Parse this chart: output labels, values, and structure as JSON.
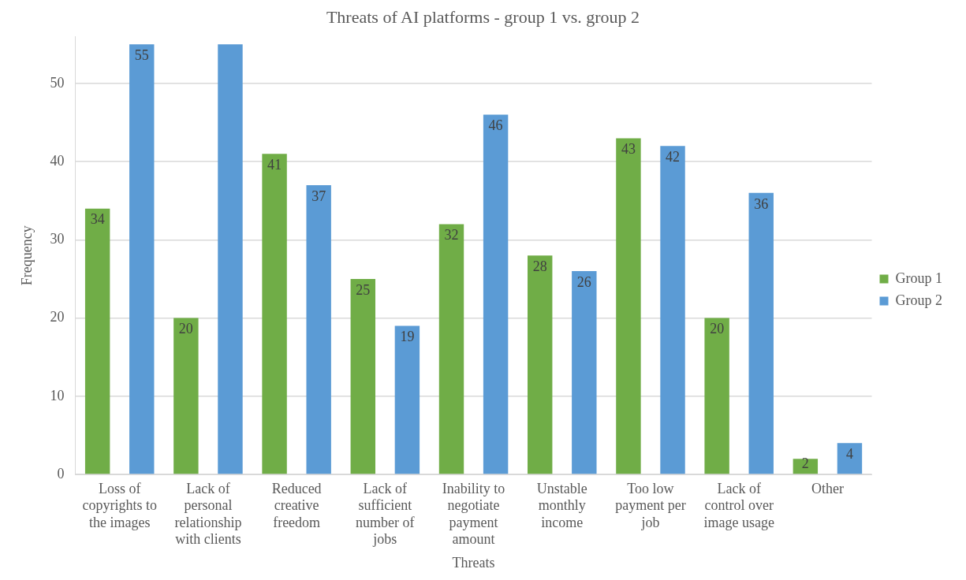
{
  "chart_data": {
    "type": "bar",
    "title": "Threats of AI platforms - group 1 vs. group 2",
    "xlabel": "Threats",
    "ylabel": "Frequency",
    "categories": [
      "Loss of copyrights to the images",
      "Lack of personal relationship with clients",
      "Reduced creative freedom",
      "Lack of sufficient number of jobs",
      "Inability to negotiate payment amount",
      "Unstable monthly income",
      "Too low payment per job",
      "Lack of control over image usage",
      "Other"
    ],
    "series": [
      {
        "name": "Group 1",
        "color": "#70ad47",
        "values": [
          34,
          20,
          41,
          25,
          32,
          28,
          43,
          20,
          2
        ],
        "value_labels": [
          "34",
          "20",
          "41",
          "25",
          "32",
          "28",
          "43",
          "20",
          "2"
        ]
      },
      {
        "name": "Group 2",
        "color": "#5b9bd5",
        "values": [
          55,
          55,
          37,
          19,
          46,
          26,
          42,
          36,
          4
        ],
        "value_labels": [
          "55",
          null,
          "37",
          "19",
          "46",
          "26",
          "42",
          "36",
          "4"
        ]
      }
    ],
    "ylim": [
      0,
      56
    ],
    "yticks": [
      0,
      10,
      20,
      30,
      40,
      50
    ],
    "grid": "y",
    "legend": "right"
  }
}
